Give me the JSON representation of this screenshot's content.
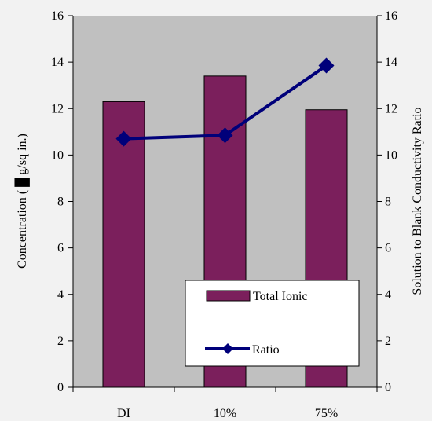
{
  "chart_data": {
    "type": "bar",
    "categories": [
      "DI",
      "10%",
      "75%"
    ],
    "series": [
      {
        "name": "Total Ionic",
        "kind": "bar",
        "axis": "left",
        "color": "#7b1f5c",
        "values": [
          12.3,
          13.4,
          11.95
        ]
      },
      {
        "name": "Ratio",
        "kind": "line",
        "axis": "right",
        "color": "#00007a",
        "marker": "diamond",
        "values": [
          10.7,
          10.85,
          13.85
        ]
      }
    ],
    "ylabel_parts": [
      "Concentration (",
      "g/sq in.)"
    ],
    "y2label": "Solution to Blank Conductivity Ratio",
    "ylim": [
      0,
      16
    ],
    "y2lim": [
      0,
      16
    ],
    "yticks": [
      0,
      2,
      4,
      6,
      8,
      10,
      12,
      14,
      16
    ],
    "y2ticks": [
      0,
      2,
      4,
      6,
      8,
      10,
      12,
      14,
      16
    ],
    "plot_background": "#c0c0c0",
    "legend": {
      "position": "bottom-right"
    },
    "grid": false
  }
}
